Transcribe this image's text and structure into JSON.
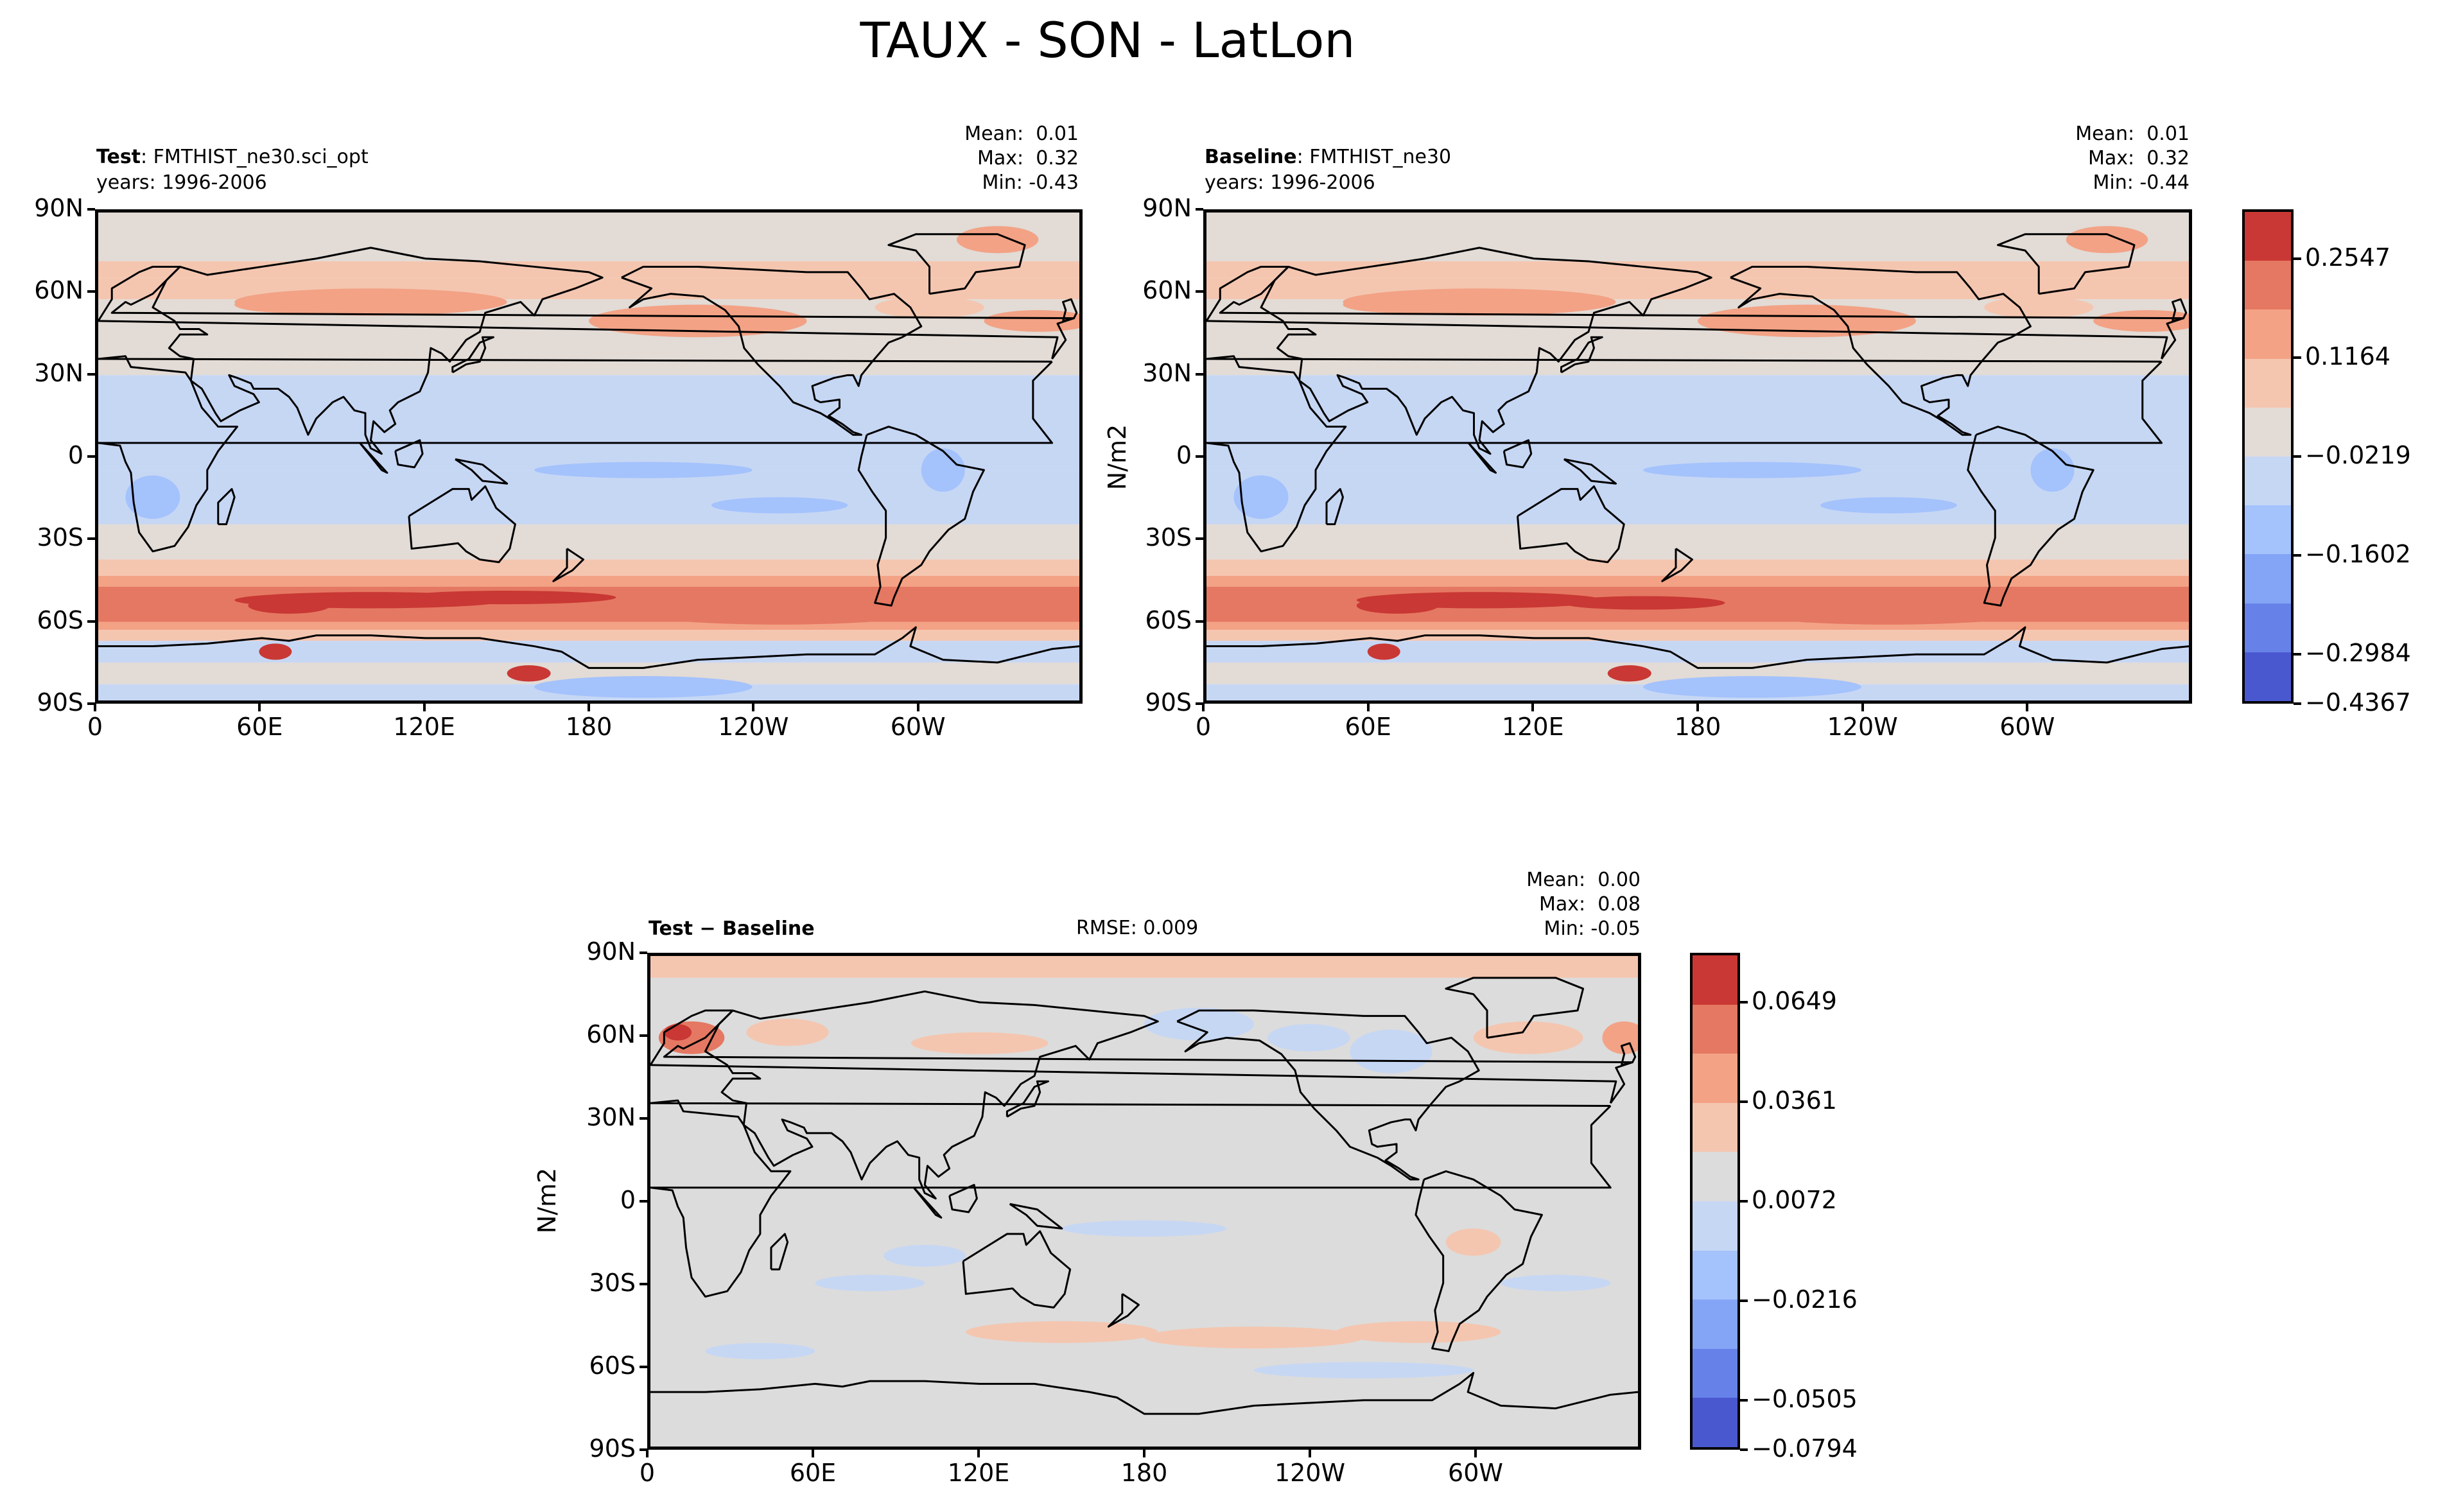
{
  "figure_title": "TAUX - SON - LatLon",
  "panels": {
    "test": {
      "label_bold": "Test",
      "label_rest": ": FMTHIST_ne30.sci_opt",
      "years": "years: 1996-2006",
      "stats": "Mean:  0.01\nMax:  0.32\nMin: -0.43"
    },
    "baseline": {
      "label_bold": "Baseline",
      "label_rest": ": FMTHIST_ne30",
      "years": "years: 1996-2006",
      "stats": "Mean:  0.01\nMax:  0.32\nMin: -0.44"
    },
    "diff": {
      "label_bold": "Test − Baseline",
      "rmse": "RMSE: 0.009",
      "stats": "Mean:  0.00\nMax:  0.08\nMin: -0.05"
    }
  },
  "axes": {
    "y_ticks": [
      "90N",
      "60N",
      "30N",
      "0",
      "30S",
      "60S",
      "90S"
    ],
    "x_ticks": [
      "0",
      "60E",
      "120E",
      "180",
      "120W",
      "60W"
    ],
    "units_label": "N/m2"
  },
  "colors": {
    "levels_main": [
      "#4a58d0",
      "#6682e8",
      "#84a4f6",
      "#a4c2fc",
      "#c6d7f4",
      "#e2dbd6",
      "#f4c6b0",
      "#f3a285",
      "#e57862",
      "#c93834"
    ],
    "levels_diff": [
      "#4a58d0",
      "#6682e8",
      "#84a4f6",
      "#a4c2fc",
      "#c6d7f4",
      "#dcdcdc",
      "#f4c6b0",
      "#f3a285",
      "#e57862",
      "#c93834"
    ],
    "coast": "#000000"
  },
  "chart_data": [
    {
      "type": "heatmap",
      "title": "Test: FMTHIST_ne30.sci_opt",
      "x_ticks": [
        "0",
        "60E",
        "120E",
        "180",
        "120W",
        "60W"
      ],
      "y_ticks": [
        "90N",
        "60N",
        "30N",
        "0",
        "30S",
        "60S",
        "90S"
      ],
      "mean": 0.01,
      "max": 0.32,
      "min": -0.43
    },
    {
      "type": "heatmap",
      "title": "Baseline: FMTHIST_ne30",
      "ylabel": "N/m2",
      "x_ticks": [
        "0",
        "60E",
        "120E",
        "180",
        "120W",
        "60W"
      ],
      "y_ticks": [
        "90N",
        "60N",
        "30N",
        "0",
        "30S",
        "60S",
        "90S"
      ],
      "mean": 0.01,
      "max": 0.32,
      "min": -0.44,
      "colorbar_ticks": [
        "0.2547",
        "0.1164",
        "−0.0219",
        "−0.1602",
        "−0.2984",
        "−0.4367"
      ]
    },
    {
      "type": "heatmap",
      "title": "Test − Baseline",
      "ylabel": "N/m2",
      "x_ticks": [
        "0",
        "60E",
        "120E",
        "180",
        "120W",
        "60W"
      ],
      "y_ticks": [
        "90N",
        "60N",
        "30N",
        "0",
        "30S",
        "60S",
        "90S"
      ],
      "rmse": 0.009,
      "mean": 0.0,
      "max": 0.08,
      "min": -0.05,
      "colorbar_ticks": [
        "0.0649",
        "0.0361",
        "0.0072",
        "−0.0216",
        "−0.0505",
        "−0.0794"
      ]
    }
  ]
}
